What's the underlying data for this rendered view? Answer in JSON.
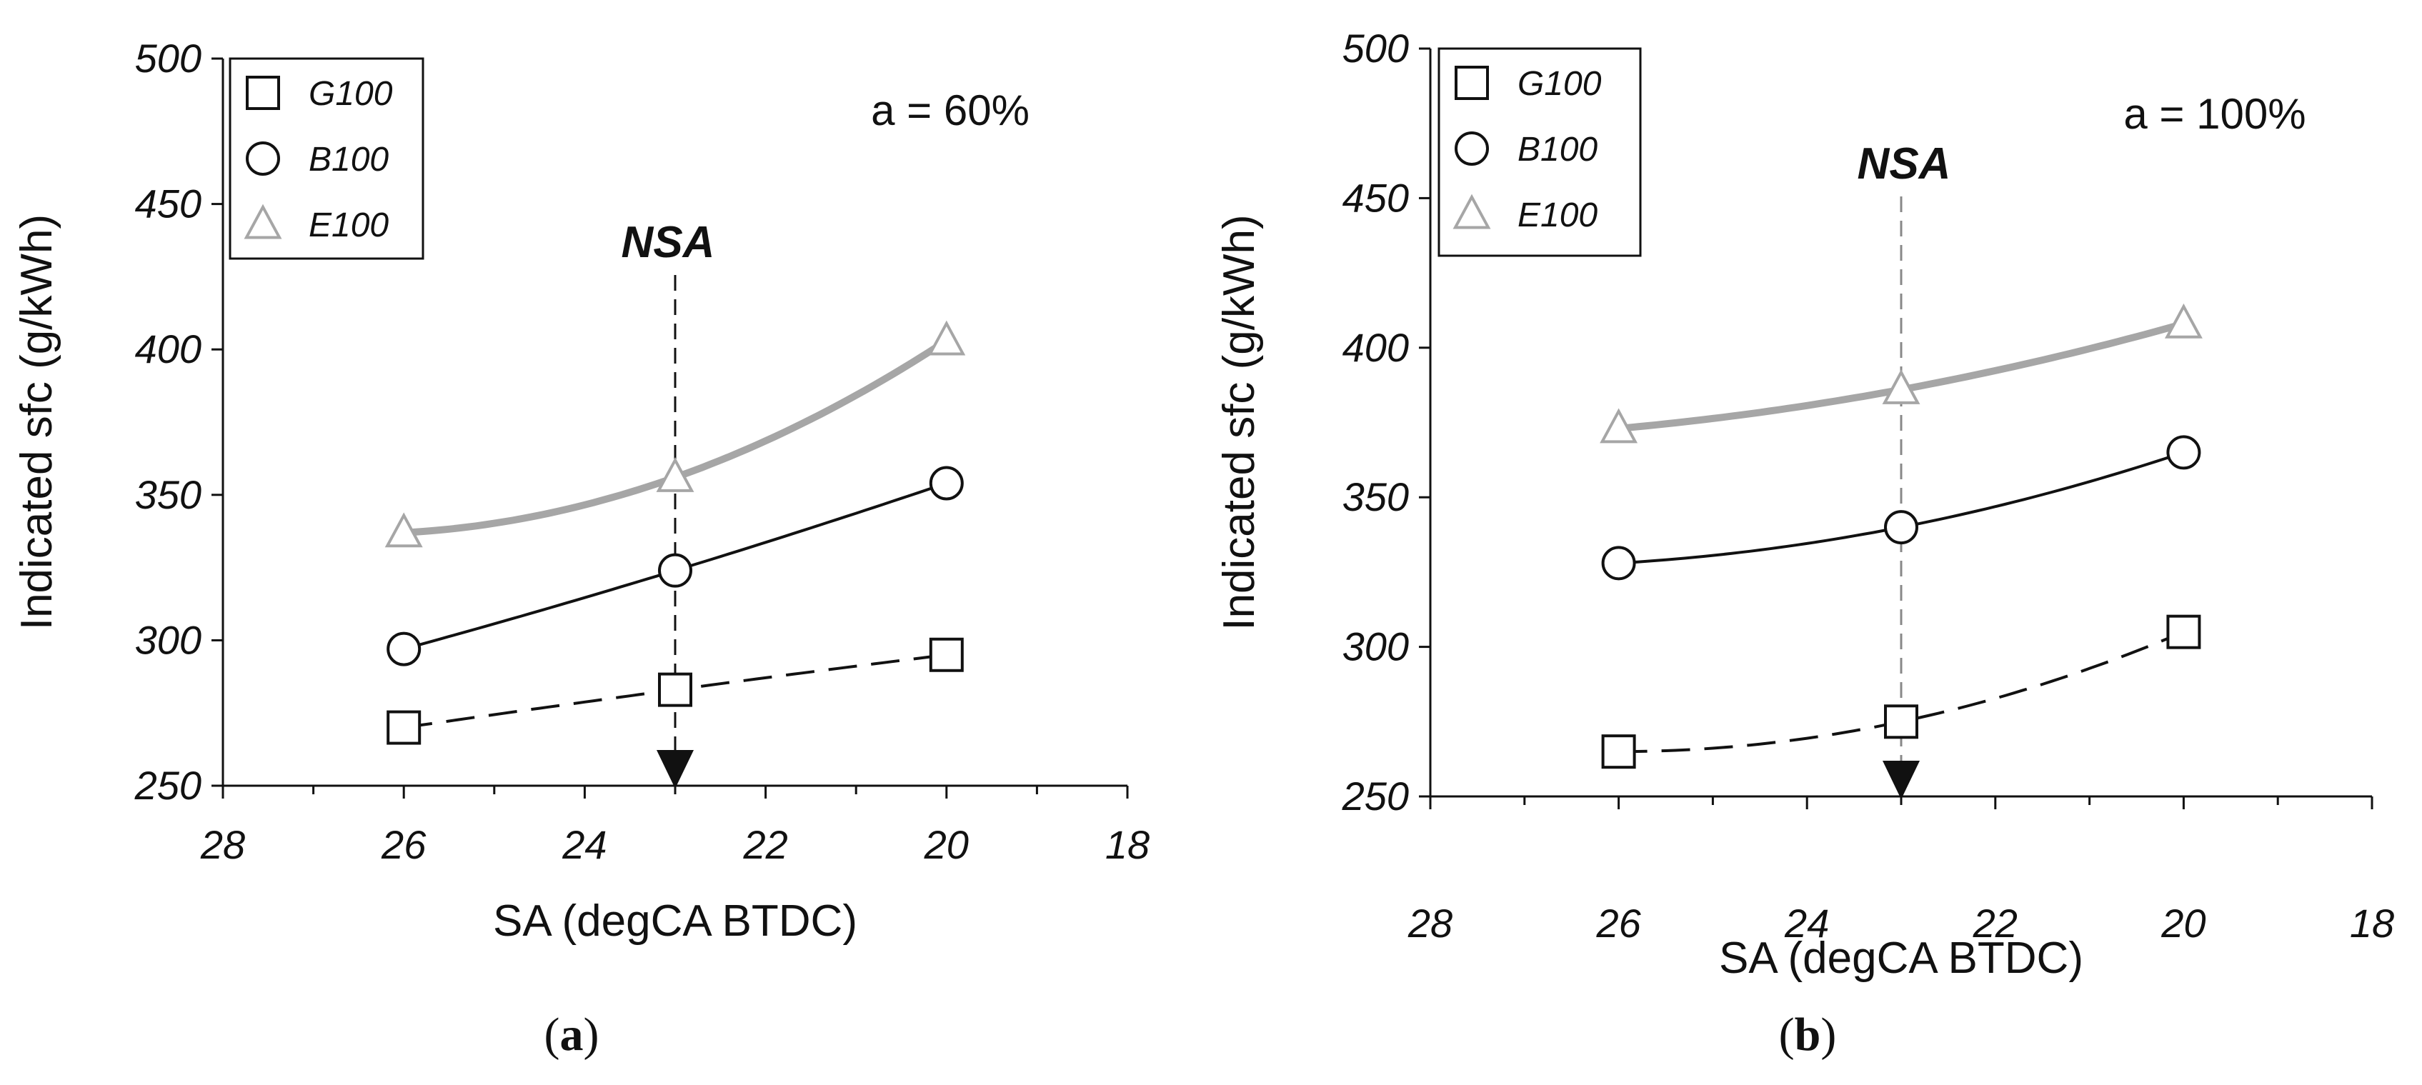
{
  "chart_data": [
    {
      "type": "line",
      "panel_label": "a",
      "caption_prefix": "(",
      "caption_suffix": ")",
      "annotation": "a = 60%",
      "marker_label": "NSA",
      "marker_x": 23,
      "xlabel": "SA (degCA BTDC)",
      "ylabel": "Indicated sfc (g/kWh)",
      "xlim": [
        28,
        18
      ],
      "ylim": [
        250,
        500
      ],
      "x_ticks": [
        28,
        26,
        24,
        22,
        20,
        18
      ],
      "y_ticks": [
        250,
        300,
        350,
        400,
        450,
        500
      ],
      "x": [
        26,
        23,
        20
      ],
      "legend_position": "top-left",
      "series": [
        {
          "name": "G100",
          "marker": "square",
          "line": "dashed",
          "color": "#111111",
          "values": [
            270,
            283,
            295
          ]
        },
        {
          "name": "B100",
          "marker": "circle",
          "line": "solid",
          "color": "#111111",
          "values": [
            297,
            324,
            354
          ]
        },
        {
          "name": "E100",
          "marker": "triangle",
          "line": "solid-thick",
          "color": "#a6a6a6",
          "values": [
            337,
            356,
            403
          ]
        }
      ]
    },
    {
      "type": "line",
      "panel_label": "b",
      "caption_prefix": "(",
      "caption_suffix": ")",
      "annotation": "a = 100%",
      "marker_label": "NSA",
      "marker_x": 23,
      "xlabel": "SA (degCA BTDC)",
      "ylabel": "Indicated sfc (g/kWh)",
      "xlim": [
        28,
        18
      ],
      "ylim": [
        250,
        500
      ],
      "x_ticks": [
        28,
        26,
        24,
        22,
        20,
        18
      ],
      "y_ticks": [
        250,
        300,
        350,
        400,
        450,
        500
      ],
      "x": [
        26,
        23,
        20
      ],
      "legend_position": "top-left",
      "series": [
        {
          "name": "G100",
          "marker": "square",
          "line": "dashed",
          "color": "#111111",
          "values": [
            265,
            275,
            305
          ]
        },
        {
          "name": "B100",
          "marker": "circle",
          "line": "solid",
          "color": "#111111",
          "values": [
            328,
            340,
            365
          ]
        },
        {
          "name": "E100",
          "marker": "triangle",
          "line": "solid-thick",
          "color": "#a6a6a6",
          "values": [
            373,
            386,
            408
          ]
        }
      ]
    }
  ]
}
